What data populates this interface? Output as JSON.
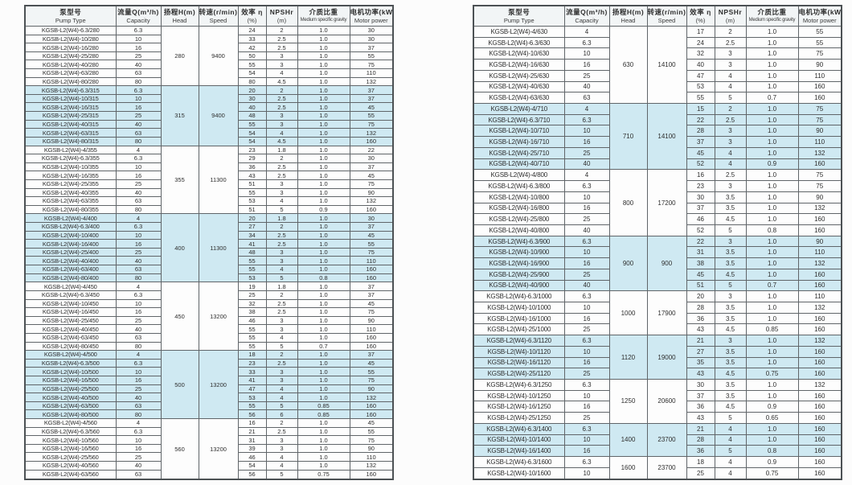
{
  "doc": {
    "series_prefix": "KGSB-L2(W4)",
    "accent_blue": "#cfe9f2",
    "row_white": "#fdfdfd",
    "border_color": "#606569"
  },
  "columns": [
    {
      "key": "pump-type",
      "zh": "泵型号",
      "en": "Pump Type"
    },
    {
      "key": "capacity",
      "zh": "流量Q(m³/h)",
      "en": "Capacity"
    },
    {
      "key": "head",
      "zh": "扬程H(m)",
      "en": "Head"
    },
    {
      "key": "speed",
      "zh": "转速(r/min)",
      "en": "Speed"
    },
    {
      "key": "efficiency",
      "zh": "效率 η",
      "en": "(%)"
    },
    {
      "key": "npshr",
      "zh": "NPSHr",
      "en": "(m)"
    },
    {
      "key": "gravity",
      "zh": "介质比重",
      "en": "Medium specific gravity"
    },
    {
      "key": "power",
      "zh": "电机功率(kW)",
      "en": "Motor power"
    }
  ],
  "tables": [
    {
      "name": "left",
      "groups": [
        {
          "head": "280",
          "speed": "9400",
          "rows": [
            [
              "KGSB-L2(W4)-6.3/280",
              "6.3",
              "24",
              "2",
              "1.0",
              "30"
            ],
            [
              "KGSB-L2(W4)-10/280",
              "10",
              "33",
              "2.5",
              "1.0",
              "30"
            ],
            [
              "KGSB-L2(W4)-16/280",
              "16",
              "42",
              "2.5",
              "1.0",
              "37"
            ],
            [
              "KGSB-L2(W4)-25/280",
              "25",
              "50",
              "3",
              "1.0",
              "55"
            ],
            [
              "KGSB-L2(W4)-40/280",
              "40",
              "55",
              "3",
              "1.0",
              "75"
            ],
            [
              "KGSB-L2(W4)-63/280",
              "63",
              "54",
              "4",
              "1.0",
              "110"
            ],
            [
              "KGSB-L2(W4)-80/280",
              "80",
              "80",
              "4.5",
              "1.0",
              "132"
            ]
          ]
        },
        {
          "head": "315",
          "speed": "9400",
          "rows": [
            [
              "KGSB-L2(W4)-6.3/315",
              "6.3",
              "20",
              "2",
              "1.0",
              "37"
            ],
            [
              "KGSB-L2(W4)-10/315",
              "10",
              "30",
              "2.5",
              "1.0",
              "37"
            ],
            [
              "KGSB-L2(W4)-16/315",
              "16",
              "40",
              "2.5",
              "1.0",
              "45"
            ],
            [
              "KGSB-L2(W4)-25/315",
              "25",
              "48",
              "3",
              "1.0",
              "55"
            ],
            [
              "KGSB-L2(W4)-40/315",
              "40",
              "55",
              "3",
              "1.0",
              "75"
            ],
            [
              "KGSB-L2(W4)-63/315",
              "63",
              "54",
              "4",
              "1.0",
              "132"
            ],
            [
              "KGSB-L2(W4)-80/315",
              "80",
              "54",
              "4.5",
              "1.0",
              "160"
            ]
          ]
        },
        {
          "head": "355",
          "speed": "11300",
          "rows": [
            [
              "KGSB-L2(W4)-4/355",
              "4",
              "23",
              "1.8",
              "1.0",
              "22"
            ],
            [
              "KGSB-L2(W4)-6.3/355",
              "6.3",
              "29",
              "2",
              "1.0",
              "30"
            ],
            [
              "KGSB-L2(W4)-10/355",
              "10",
              "36",
              "2.5",
              "1.0",
              "37"
            ],
            [
              "KGSB-L2(W4)-16/355",
              "16",
              "43",
              "2.5",
              "1.0",
              "45"
            ],
            [
              "KGSB-L2(W4)-25/355",
              "25",
              "51",
              "3",
              "1.0",
              "75"
            ],
            [
              "KGSB-L2(W4)-40/355",
              "40",
              "55",
              "3",
              "1.0",
              "90"
            ],
            [
              "KGSB-L2(W4)-63/355",
              "63",
              "53",
              "4",
              "1.0",
              "132"
            ],
            [
              "KGSB-L2(W4)-80/355",
              "80",
              "51",
              "5",
              "0.9",
              "160"
            ]
          ]
        },
        {
          "head": "400",
          "speed": "11300",
          "rows": [
            [
              "KGSB-L2(W4)-4/400",
              "4",
              "20",
              "1.8",
              "1.0",
              "30"
            ],
            [
              "KGSB-L2(W4)-6.3/400",
              "6.3",
              "27",
              "2",
              "1.0",
              "37"
            ],
            [
              "KGSB-L2(W4)-10/400",
              "10",
              "34",
              "2.5",
              "1.0",
              "45"
            ],
            [
              "KGSB-L2(W4)-16/400",
              "16",
              "41",
              "2.5",
              "1.0",
              "55"
            ],
            [
              "KGSB-L2(W4)-25/400",
              "25",
              "48",
              "3",
              "1.0",
              "75"
            ],
            [
              "KGSB-L2(W4)-40/400",
              "40",
              "55",
              "3",
              "1.0",
              "110"
            ],
            [
              "KGSB-L2(W4)-63/400",
              "63",
              "55",
              "4",
              "1.0",
              "160"
            ],
            [
              "KGSB-L2(W4)-80/400",
              "80",
              "53",
              "5",
              "0.8",
              "160"
            ]
          ]
        },
        {
          "head": "450",
          "speed": "13200",
          "rows": [
            [
              "KGSB-L2(W4)-4/450",
              "4",
              "19",
              "1.8",
              "1.0",
              "37"
            ],
            [
              "KGSB-L2(W4)-6.3/450",
              "6.3",
              "25",
              "2",
              "1.0",
              "37"
            ],
            [
              "KGSB-L2(W4)-10/450",
              "10",
              "32",
              "2.5",
              "1.0",
              "45"
            ],
            [
              "KGSB-L2(W4)-16/450",
              "16",
              "38",
              "2.5",
              "1.0",
              "75"
            ],
            [
              "KGSB-L2(W4)-25/450",
              "25",
              "46",
              "3",
              "1.0",
              "90"
            ],
            [
              "KGSB-L2(W4)-40/450",
              "40",
              "55",
              "3",
              "1.0",
              "110"
            ],
            [
              "KGSB-L2(W4)-63/450",
              "63",
              "55",
              "4",
              "1.0",
              "160"
            ],
            [
              "KGSB-L2(W4)-80/450",
              "80",
              "55",
              "5",
              "0.7",
              "160"
            ]
          ]
        },
        {
          "head": "500",
          "speed": "13200",
          "rows": [
            [
              "KGSB-L2(W4)-4/500",
              "4",
              "18",
              "2",
              "1.0",
              "37"
            ],
            [
              "KGSB-L2(W4)-6.3/500",
              "6.3",
              "23",
              "2.5",
              "1.0",
              "45"
            ],
            [
              "KGSB-L2(W4)-10/500",
              "10",
              "33",
              "3",
              "1.0",
              "55"
            ],
            [
              "KGSB-L2(W4)-16/500",
              "16",
              "41",
              "3",
              "1.0",
              "75"
            ],
            [
              "KGSB-L2(W4)-25/500",
              "25",
              "47",
              "4",
              "1.0",
              "90"
            ],
            [
              "KGSB-L2(W4)-40/500",
              "40",
              "53",
              "4",
              "1.0",
              "132"
            ],
            [
              "KGSB-L2(W4)-63/500",
              "63",
              "55",
              "5",
              "0.85",
              "160"
            ],
            [
              "KGSB-L2(W4)-80/500",
              "80",
              "56",
              "6",
              "0.85",
              "160"
            ]
          ]
        },
        {
          "head": "560",
          "speed": "13200",
          "rows": [
            [
              "KGSB-L2(W4)-4/560",
              "4",
              "16",
              "2",
              "1.0",
              "45"
            ],
            [
              "KGSB-L2(W4)-6.3/560",
              "6.3",
              "21",
              "2.5",
              "1.0",
              "55"
            ],
            [
              "KGSB-L2(W4)-10/560",
              "10",
              "31",
              "3",
              "1.0",
              "75"
            ],
            [
              "KGSB-L2(W4)-16/560",
              "16",
              "39",
              "3",
              "1.0",
              "90"
            ],
            [
              "KGSB-L2(W4)-25/560",
              "25",
              "46",
              "4",
              "1.0",
              "110"
            ],
            [
              "KGSB-L2(W4)-40/560",
              "40",
              "54",
              "4",
              "1.0",
              "132"
            ],
            [
              "KGSB-L2(W4)-63/560",
              "63",
              "56",
              "5",
              "0.75",
              "160"
            ]
          ]
        }
      ]
    },
    {
      "name": "right",
      "groups": [
        {
          "head": "630",
          "speed": "14100",
          "rows": [
            [
              "KGSB-L2(W4)-4/630",
              "4",
              "17",
              "2",
              "1.0",
              "55"
            ],
            [
              "KGSB-L2(W4)-6.3/630",
              "6.3",
              "24",
              "2.5",
              "1.0",
              "55"
            ],
            [
              "KGSB-L2(W4)-10/630",
              "10",
              "32",
              "3",
              "1.0",
              "75"
            ],
            [
              "KGSB-L2(W4)-16/630",
              "16",
              "40",
              "3",
              "1.0",
              "90"
            ],
            [
              "KGSB-L2(W4)-25/630",
              "25",
              "47",
              "4",
              "1.0",
              "110"
            ],
            [
              "KGSB-L2(W4)-40/630",
              "40",
              "53",
              "4",
              "1.0",
              "160"
            ],
            [
              "KGSB-L2(W4)-63/630",
              "63",
              "55",
              "5",
              "0.7",
              "160"
            ]
          ]
        },
        {
          "head": "710",
          "speed": "14100",
          "rows": [
            [
              "KGSB-L2(W4)-4/710",
              "4",
              "15",
              "2",
              "1.0",
              "75"
            ],
            [
              "KGSB-L2(W4)-6.3/710",
              "6.3",
              "22",
              "2.5",
              "1.0",
              "75"
            ],
            [
              "KGSB-L2(W4)-10/710",
              "10",
              "28",
              "3",
              "1.0",
              "90"
            ],
            [
              "KGSB-L2(W4)-16/710",
              "16",
              "37",
              "3",
              "1.0",
              "110"
            ],
            [
              "KGSB-L2(W4)-25/710",
              "25",
              "45",
              "4",
              "1.0",
              "132"
            ],
            [
              "KGSB-L2(W4)-40/710",
              "40",
              "52",
              "4",
              "0.9",
              "160"
            ]
          ]
        },
        {
          "head": "800",
          "speed": "17200",
          "rows": [
            [
              "KGSB-L2(W4)-4/800",
              "4",
              "16",
              "2.5",
              "1.0",
              "75"
            ],
            [
              "KGSB-L2(W4)-6.3/800",
              "6.3",
              "23",
              "3",
              "1.0",
              "75"
            ],
            [
              "KGSB-L2(W4)-10/800",
              "10",
              "30",
              "3.5",
              "1.0",
              "90"
            ],
            [
              "KGSB-L2(W4)-16/800",
              "16",
              "37",
              "3.5",
              "1.0",
              "132"
            ],
            [
              "KGSB-L2(W4)-25/800",
              "25",
              "46",
              "4.5",
              "1.0",
              "160"
            ],
            [
              "KGSB-L2(W4)-40/800",
              "40",
              "52",
              "5",
              "0.8",
              "160"
            ]
          ]
        },
        {
          "head": "900",
          "speed": "900",
          "rows": [
            [
              "KGSB-L2(W4)-6.3/900",
              "6.3",
              "22",
              "3",
              "1.0",
              "90"
            ],
            [
              "KGSB-L2(W4)-10/900",
              "10",
              "31",
              "3.5",
              "1.0",
              "110"
            ],
            [
              "KGSB-L2(W4)-16/900",
              "16",
              "38",
              "3.5",
              "1.0",
              "132"
            ],
            [
              "KGSB-L2(W4)-25/900",
              "25",
              "45",
              "4.5",
              "1.0",
              "160"
            ],
            [
              "KGSB-L2(W4)-40/900",
              "40",
              "51",
              "5",
              "0.7",
              "160"
            ]
          ]
        },
        {
          "head": "1000",
          "speed": "17900",
          "rows": [
            [
              "KGSB-L2(W4)-6.3/1000",
              "6.3",
              "20",
              "3",
              "1.0",
              "110"
            ],
            [
              "KGSB-L2(W4)-10/1000",
              "10",
              "28",
              "3.5",
              "1.0",
              "132"
            ],
            [
              "KGSB-L2(W4)-16/1000",
              "16",
              "36",
              "3.5",
              "1.0",
              "160"
            ],
            [
              "KGSB-L2(W4)-25/1000",
              "25",
              "43",
              "4.5",
              "0.85",
              "160"
            ]
          ]
        },
        {
          "head": "1120",
          "speed": "19000",
          "rows": [
            [
              "KGSB-L2(W4)-6.3/1120",
              "6.3",
              "21",
              "3",
              "1.0",
              "132"
            ],
            [
              "KGSB-L2(W4)-10/1120",
              "10",
              "27",
              "3.5",
              "1.0",
              "160"
            ],
            [
              "KGSB-L2(W4)-16/1120",
              "16",
              "35",
              "3.5",
              "1.0",
              "160"
            ],
            [
              "KGSB-L2(W4)-25/1120",
              "25",
              "43",
              "4.5",
              "0.75",
              "160"
            ]
          ]
        },
        {
          "head": "1250",
          "speed": "20600",
          "rows": [
            [
              "KGSB-L2(W4)-6.3/1250",
              "6.3",
              "30",
              "3.5",
              "1.0",
              "132"
            ],
            [
              "KGSB-L2(W4)-10/1250",
              "10",
              "37",
              "3.5",
              "1.0",
              "160"
            ],
            [
              "KGSB-L2(W4)-16/1250",
              "16",
              "36",
              "4.5",
              "0.9",
              "160"
            ],
            [
              "KGSB-L2(W4)-25/1250",
              "25",
              "43",
              "5",
              "0.65",
              "160"
            ]
          ]
        },
        {
          "head": "1400",
          "speed": "23700",
          "rows": [
            [
              "KGSB-L2(W4)-6.3/1400",
              "6.3",
              "21",
              "4",
              "1.0",
              "160"
            ],
            [
              "KGSB-L2(W4)-10/1400",
              "10",
              "28",
              "4",
              "1.0",
              "160"
            ],
            [
              "KGSB-L2(W4)-16/1400",
              "16",
              "36",
              "5",
              "0.8",
              "160"
            ]
          ]
        },
        {
          "head": "1600",
          "speed": "23700",
          "rows": [
            [
              "KGSB-L2(W4)-6.3/1600",
              "6.3",
              "18",
              "4",
              "0.9",
              "160"
            ],
            [
              "KGSB-L2(W4)-10/1600",
              "10",
              "25",
              "4",
              "0.75",
              "160"
            ]
          ]
        }
      ]
    }
  ]
}
